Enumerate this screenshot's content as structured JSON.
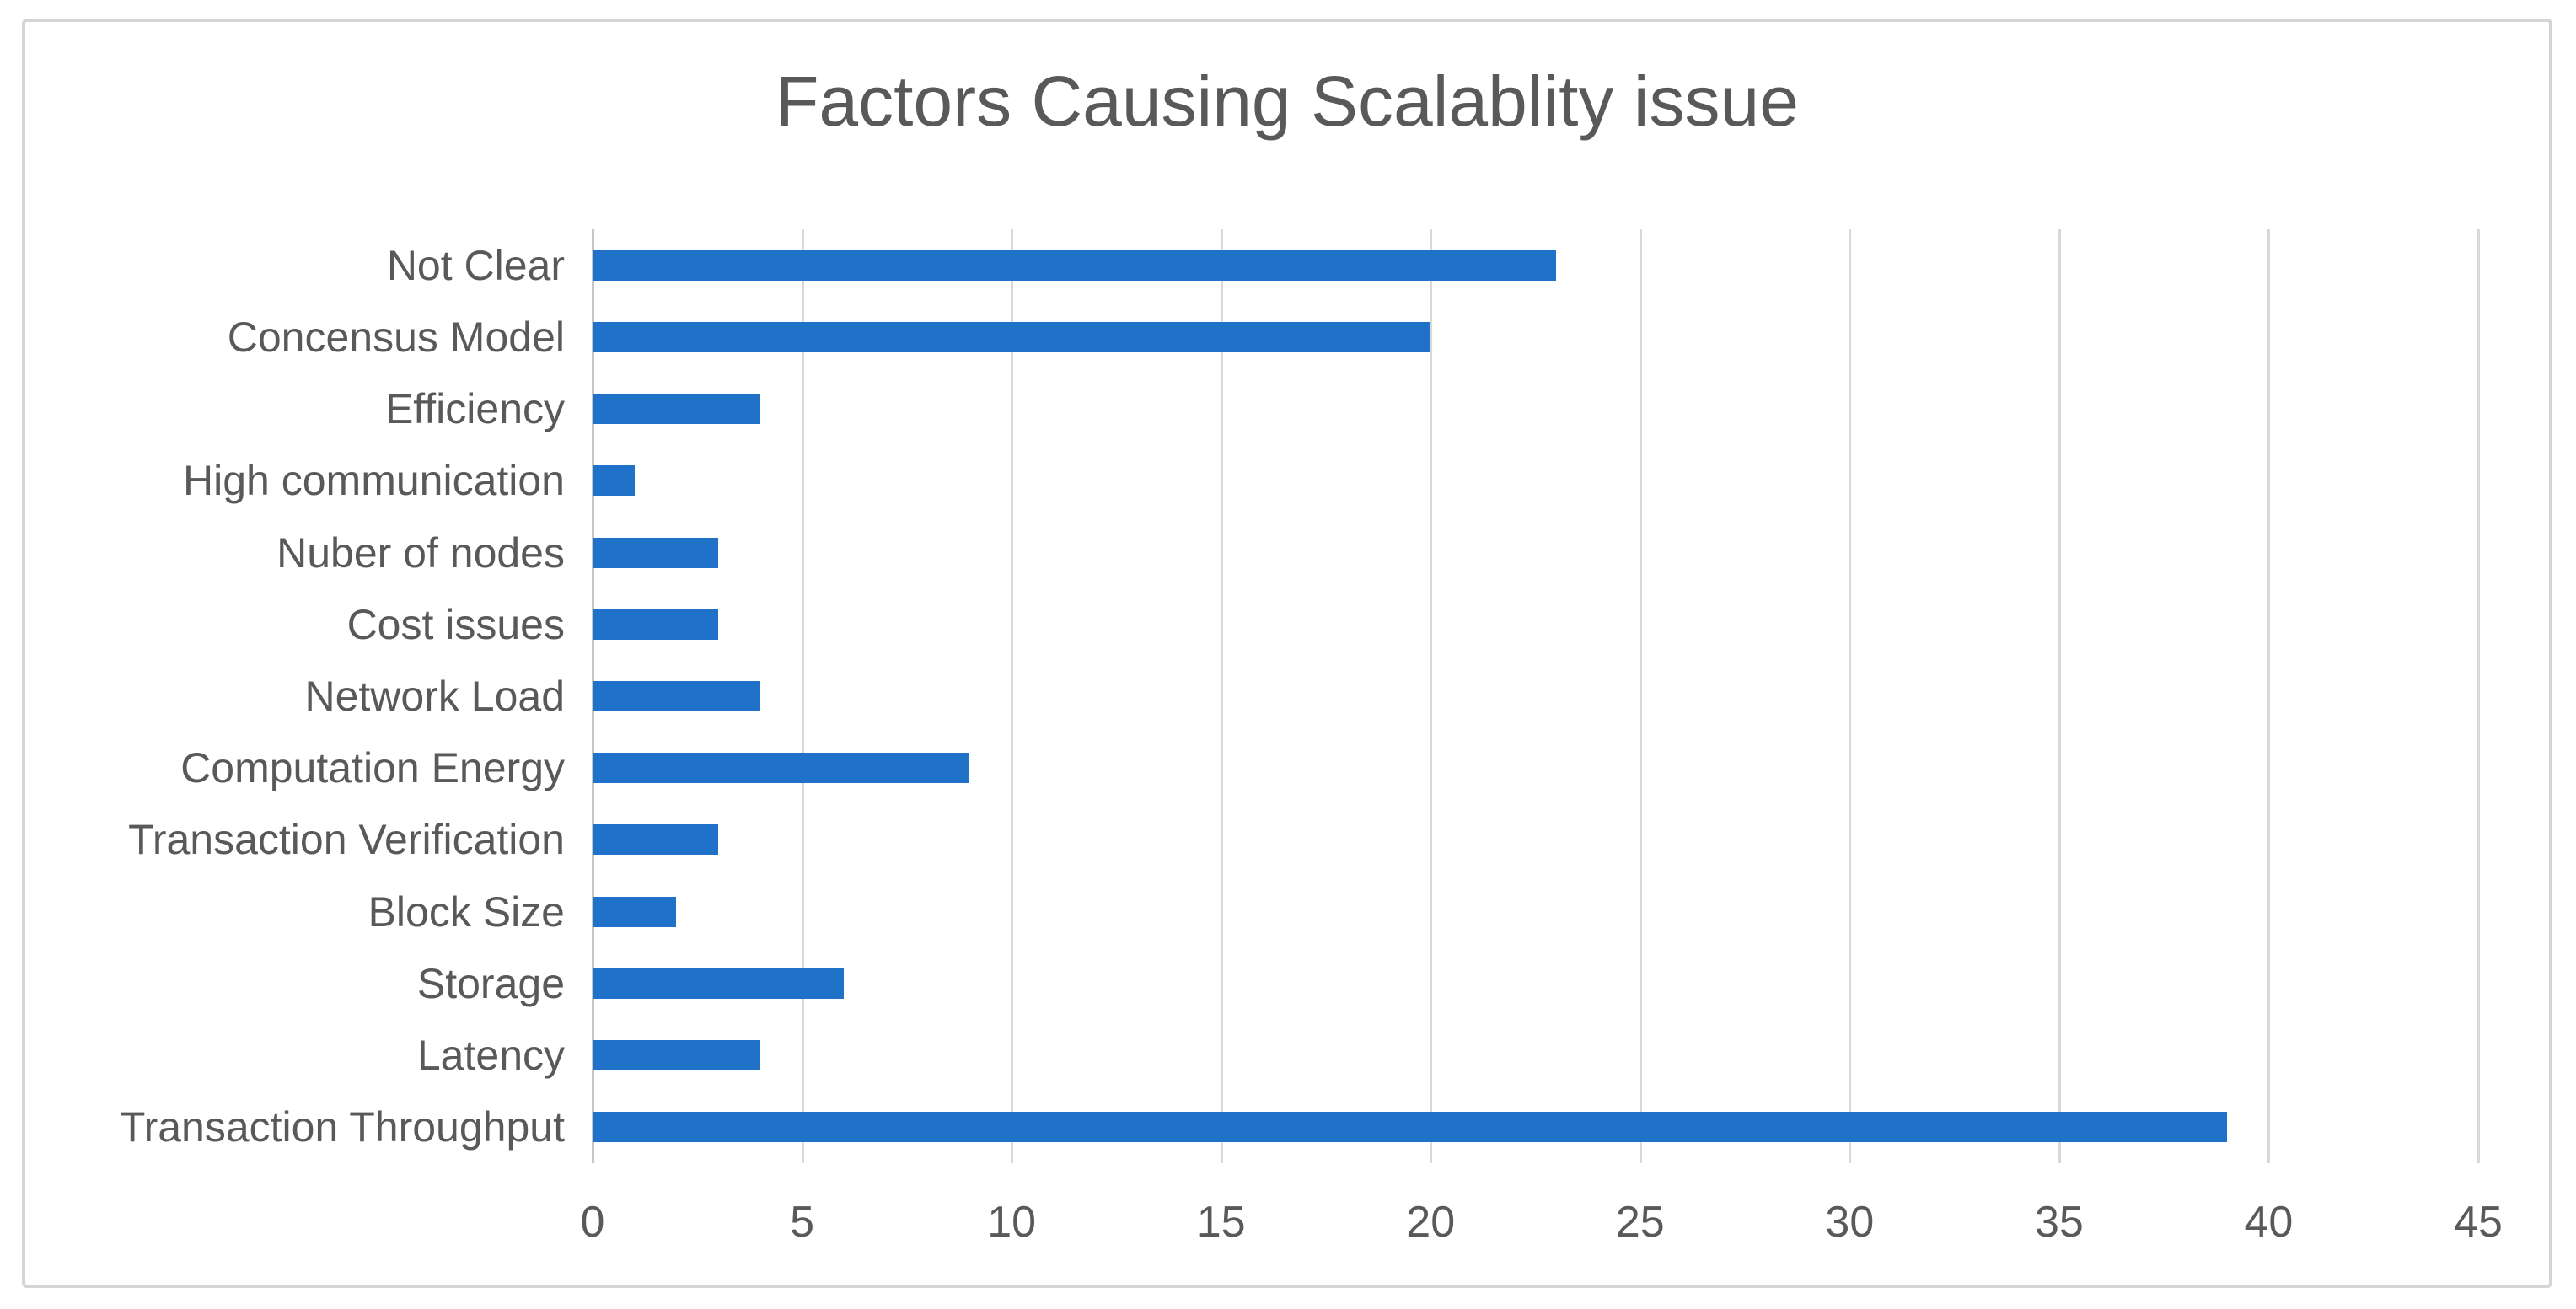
{
  "chart_data": {
    "type": "bar",
    "orientation": "horizontal",
    "title": "Factors Causing Scalablity issue",
    "categories": [
      "Not Clear",
      "Concensus Model",
      "Efficiency",
      "High communication",
      "Nuber of nodes",
      "Cost issues",
      "Network Load",
      "Computation Energy",
      "Transaction Verification",
      "Block Size",
      "Storage",
      "Latency",
      "Transaction Throughput"
    ],
    "values": [
      23,
      20,
      4,
      1,
      3,
      3,
      4,
      9,
      3,
      2,
      6,
      4,
      39
    ],
    "xlabel": "",
    "ylabel": "",
    "xlim": [
      0,
      45
    ],
    "xticks": [
      0,
      5,
      10,
      15,
      20,
      25,
      30,
      35,
      40,
      45
    ],
    "grid": true,
    "legend": false,
    "bar_color": "#1f72c8",
    "gridline_color": "#d9d9d9",
    "axis_line_color": "#c6c6c6",
    "text_color": "#595959",
    "frame_border_color": "#d5d5d5"
  }
}
